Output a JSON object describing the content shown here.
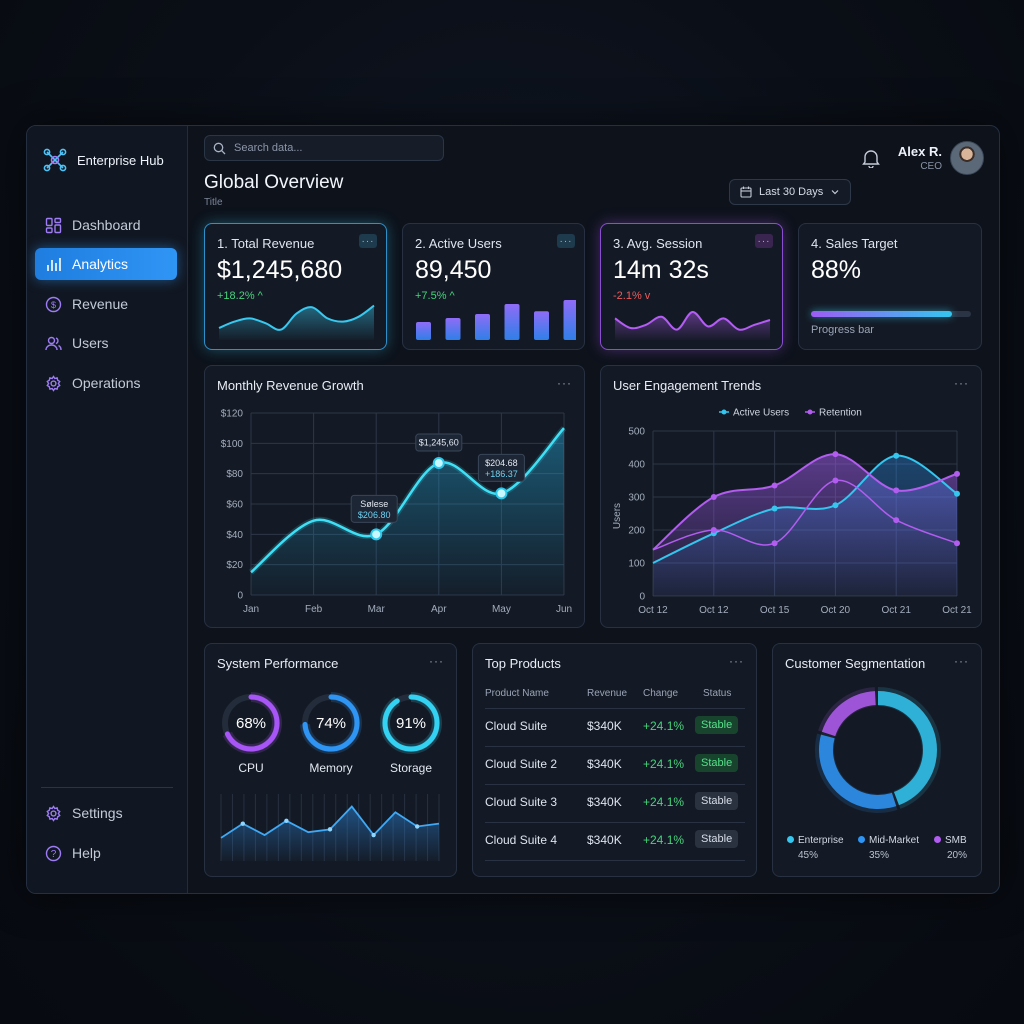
{
  "app": {
    "brand": "Enterprise Hub"
  },
  "sidebar": {
    "items": [
      {
        "label": "Dashboard",
        "icon": "dashboard-icon"
      },
      {
        "label": "Analytics",
        "icon": "bar-chart-icon",
        "active": true
      },
      {
        "label": "Revenue",
        "icon": "dollar-icon"
      },
      {
        "label": "Users",
        "icon": "users-icon"
      },
      {
        "label": "Operations",
        "icon": "gear-icon"
      }
    ],
    "bottom": [
      {
        "label": "Settings",
        "icon": "gear-icon"
      },
      {
        "label": "Help",
        "icon": "help-icon"
      }
    ]
  },
  "header": {
    "search_placeholder": "Search data...",
    "title": "Global Overview",
    "subtitle": "Title",
    "date_range": "Last 30 Days",
    "user_name": "Alex R.",
    "user_role": "CEO"
  },
  "kpis": [
    {
      "label": "1. Total Revenue",
      "value": "$1,245,680",
      "change": "+18.2% ^",
      "change_color": "#46d47c",
      "accent": "#38c9f0",
      "spark": [
        0.25,
        0.45,
        0.55,
        0.4,
        0.2,
        0.7,
        0.9,
        0.55,
        0.45,
        0.6,
        0.95
      ]
    },
    {
      "label": "2. Active Users",
      "value": "89,450",
      "change": "+7.5% ^",
      "change_color": "#46d47c",
      "accent": "#2f95f5",
      "bars": [
        0.45,
        0.55,
        0.65,
        0.9,
        0.72,
        1.0
      ]
    },
    {
      "label": "3. Avg. Session",
      "value": "14m 32s",
      "change": "-2.1% v",
      "change_color": "#ef5a5a",
      "accent": "#b45cf5",
      "spark": [
        0.55,
        0.25,
        0.35,
        0.6,
        0.2,
        0.75,
        0.3,
        0.55,
        0.2,
        0.35,
        0.5
      ]
    },
    {
      "label": "4. Sales Target",
      "value": "88%",
      "progress": 0.88,
      "progress_label": "Progress bar"
    }
  ],
  "revenue_chart": {
    "title": "Monthly Revenue Growth",
    "chart_data": {
      "type": "line",
      "categories": [
        "Jan",
        "Feb",
        "Mar",
        "Apr",
        "May",
        "Jun"
      ],
      "y_ticks": [
        "$120",
        "$100",
        "$80",
        "$60",
        "$40",
        "$20",
        "0"
      ],
      "ylim": [
        0,
        120
      ],
      "values": [
        15,
        49,
        40,
        87,
        67,
        110
      ],
      "markers": [
        2,
        3,
        4
      ],
      "tooltips": [
        {
          "lines": [
            "Sølese",
            "$206.80"
          ],
          "point": 2
        },
        {
          "lines": [
            "$1,245,60"
          ],
          "point": 3
        },
        {
          "lines": [
            "$204.68",
            "+186.37"
          ],
          "point": 4
        }
      ]
    }
  },
  "engagement_chart": {
    "title": "User Engagement Trends",
    "chart_data": {
      "type": "line",
      "x": [
        "Oct 12",
        "Oct 12",
        "Oct 15",
        "Oct 20",
        "Oct 21",
        "Oct 21"
      ],
      "y_ticks": [
        "500",
        "400",
        "300",
        "200",
        "100",
        "0"
      ],
      "ylabel": "Users",
      "ylim": [
        0,
        500
      ],
      "legend": "top-center",
      "series": [
        {
          "name": "Active Users",
          "color": "#33c6ef",
          "values": [
            100,
            190,
            265,
            275,
            425,
            310
          ]
        },
        {
          "name": "Retention",
          "color": "#b25cf0",
          "values": [
            140,
            300,
            335,
            430,
            320,
            370
          ]
        },
        {
          "name": "",
          "color": "#b25cf0",
          "values": [
            140,
            200,
            160,
            350,
            230,
            160
          ]
        }
      ]
    }
  },
  "performance": {
    "title": "System Performance",
    "rings": [
      {
        "value": 0.68,
        "text": "68%",
        "label": "CPU",
        "color": "#a855f7"
      },
      {
        "value": 0.74,
        "text": "74%",
        "label": "Memory",
        "color": "#2f95f5"
      },
      {
        "value": 0.91,
        "text": "91%",
        "label": "Storage",
        "color": "#33d2f2"
      }
    ],
    "spark": [
      0.3,
      0.55,
      0.35,
      0.6,
      0.4,
      0.45,
      0.85,
      0.35,
      0.75,
      0.5,
      0.55
    ]
  },
  "products": {
    "title": "Top Products",
    "columns": [
      "Product Name",
      "Revenue",
      "Change",
      "Status"
    ],
    "rows": [
      {
        "name": "Cloud Suite",
        "revenue": "$340K",
        "change": "+24.1%",
        "status": "Stable",
        "tone": "g"
      },
      {
        "name": "Cloud Suite 2",
        "revenue": "$340K",
        "change": "+24.1%",
        "status": "Stable",
        "tone": "g"
      },
      {
        "name": "Cloud Suite 3",
        "revenue": "$340K",
        "change": "+24.1%",
        "status": "Stable",
        "tone": "n"
      },
      {
        "name": "Cloud Suite 4",
        "revenue": "$340K",
        "change": "+24.1%",
        "status": "Stable",
        "tone": "n"
      }
    ]
  },
  "segmentation": {
    "title": "Customer Segmentation",
    "chart_data": {
      "type": "pie",
      "series": [
        {
          "name": "Enterprise",
          "value": 45,
          "label": "45%",
          "color": "#33c6ef"
        },
        {
          "name": "Mid-Market",
          "value": 35,
          "label": "35%",
          "color": "#2f95f5"
        },
        {
          "name": "SMB",
          "value": 20,
          "label": "20%",
          "color": "#b25cf0"
        }
      ]
    }
  }
}
